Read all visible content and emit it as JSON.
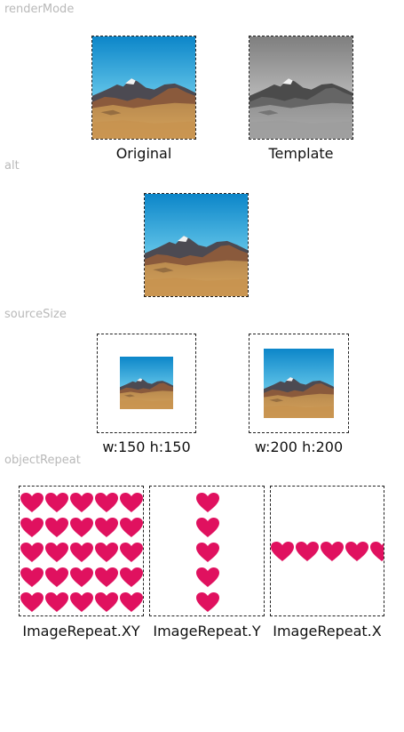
{
  "sections": {
    "render_mode": "renderMode",
    "alt": "alt",
    "source_size": "sourceSize",
    "object_repeat": "objectRepeat"
  },
  "render_mode": {
    "original_caption": "Original",
    "template_caption": "Template"
  },
  "source_size": {
    "small_caption": "w:150 h:150",
    "large_caption": "w:200 h:200"
  },
  "object_repeat": {
    "xy_caption": "ImageRepeat.XY",
    "y_caption": "ImageRepeat.Y",
    "x_caption": "ImageRepeat.X"
  },
  "colors": {
    "heart": "#e0115f",
    "section_label": "#b9b9b9",
    "frame_border": "#222222"
  },
  "icons": {
    "landscape": "mountain-landscape-image",
    "heart": "heart-icon"
  }
}
